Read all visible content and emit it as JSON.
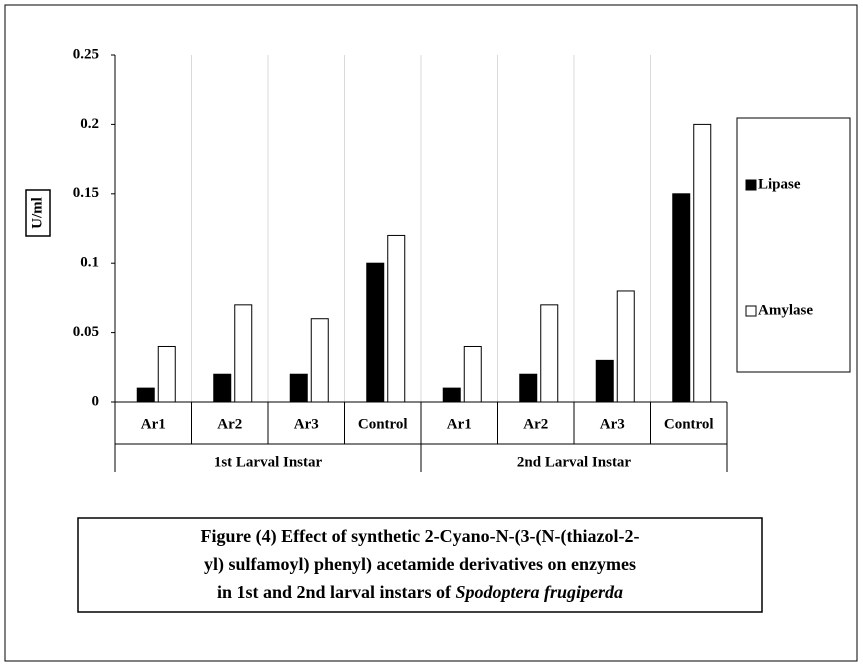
{
  "chart_data": {
    "type": "bar",
    "categories": [
      "Ar1",
      "Ar2",
      "Ar3",
      "Control",
      "Ar1",
      "Ar2",
      "Ar3",
      "Control"
    ],
    "groups": [
      {
        "label": "1st Larval Instar",
        "size": 4
      },
      {
        "label": "2nd Larval Instar",
        "size": 4
      }
    ],
    "series": [
      {
        "name": "Lipase",
        "color": "#000000",
        "values": [
          0.01,
          0.02,
          0.02,
          0.1,
          0.01,
          0.02,
          0.03,
          0.15
        ]
      },
      {
        "name": "Amylase",
        "color": "#ffffff",
        "values": [
          0.04,
          0.07,
          0.06,
          0.12,
          0.04,
          0.07,
          0.08,
          0.2
        ]
      }
    ],
    "y_label": "U/ml",
    "ylim": [
      0,
      0.25
    ],
    "yticks": [
      0,
      0.05,
      0.1,
      0.15,
      0.2,
      0.25
    ],
    "grid": true,
    "legend": "right",
    "caption": {
      "lines": [
        "Figure (4) Effect of synthetic 2-Cyano-N-(3-(N-(thiazol-2-",
        "yl) sulfamoyl) phenyl) acetamide derivatives on enzymes",
        "in 1st and 2nd larval instars of"
      ],
      "species": "Spodoptera frugiperda"
    }
  }
}
